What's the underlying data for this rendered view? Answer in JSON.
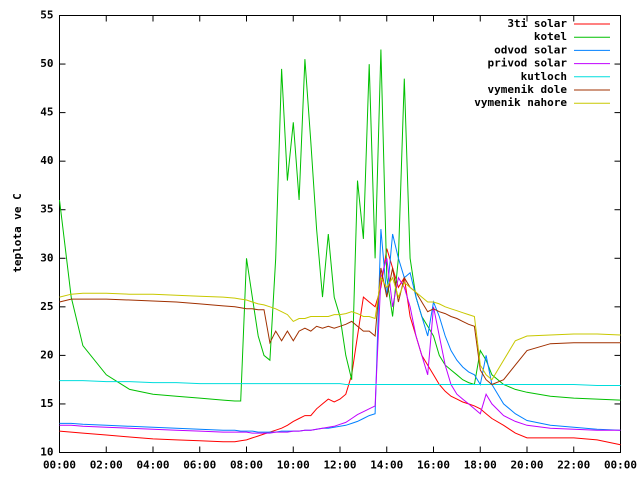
{
  "chart_data": {
    "type": "line",
    "ylabel": "teplota ve C",
    "x": [
      0,
      0.5,
      1,
      2,
      3,
      4,
      5,
      6,
      7,
      7.5,
      7.75,
      8,
      8.25,
      8.5,
      8.75,
      9,
      9.25,
      9.5,
      9.75,
      10,
      10.25,
      10.5,
      10.75,
      11,
      11.25,
      11.5,
      11.75,
      12,
      12.25,
      12.5,
      12.75,
      13,
      13.25,
      13.5,
      13.75,
      14,
      14.25,
      14.5,
      14.75,
      15,
      15.25,
      15.5,
      15.75,
      16,
      16.25,
      16.5,
      16.75,
      17,
      17.25,
      17.5,
      17.75,
      18,
      18.25,
      18.5,
      19,
      19.5,
      20,
      21,
      22,
      23,
      24
    ],
    "xlim": [
      0,
      24
    ],
    "xticks": [
      {
        "value": 0,
        "label": "00:00"
      },
      {
        "value": 2,
        "label": "02:00"
      },
      {
        "value": 4,
        "label": "04:00"
      },
      {
        "value": 6,
        "label": "06:00"
      },
      {
        "value": 8,
        "label": "08:00"
      },
      {
        "value": 10,
        "label": "10:00"
      },
      {
        "value": 12,
        "label": "12:00"
      },
      {
        "value": 14,
        "label": "14:00"
      },
      {
        "value": 16,
        "label": "16:00"
      },
      {
        "value": 18,
        "label": "18:00"
      },
      {
        "value": 20,
        "label": "20:00"
      },
      {
        "value": 22,
        "label": "22:00"
      },
      {
        "value": 24,
        "label": "00:00"
      }
    ],
    "ylim": [
      10,
      55
    ],
    "yticks": [
      10,
      15,
      20,
      25,
      30,
      35,
      40,
      45,
      50,
      55
    ],
    "legend": "top-right",
    "series": [
      {
        "name": "3ti solar",
        "color": "#ff0000",
        "values": [
          12.2,
          12.1,
          12,
          11.8,
          11.6,
          11.4,
          11.3,
          11.2,
          11.1,
          11.1,
          11.2,
          11.3,
          11.5,
          11.7,
          11.9,
          12.1,
          12.3,
          12.5,
          12.8,
          13.2,
          13.5,
          13.8,
          13.8,
          14.5,
          15,
          15.5,
          15.2,
          15.5,
          16,
          18,
          22,
          26,
          25.5,
          25,
          27,
          31,
          29,
          27,
          28,
          24,
          22,
          20,
          19,
          18,
          17,
          16.3,
          15.8,
          15.5,
          15.2,
          15,
          14.8,
          14.5,
          14,
          13.5,
          12.8,
          12,
          11.5,
          11.5,
          11.5,
          11.3,
          10.8
        ]
      },
      {
        "name": "kotel",
        "color": "#00c000",
        "values": [
          36,
          26,
          21,
          18,
          16.5,
          16,
          15.8,
          15.6,
          15.4,
          15.3,
          15.3,
          30,
          26,
          22,
          20,
          19.5,
          30,
          49.5,
          38,
          44,
          36,
          50.5,
          42,
          33,
          26,
          32.5,
          26,
          24,
          20,
          17.5,
          38,
          32,
          50,
          30,
          51.5,
          28,
          24,
          30,
          48.5,
          30,
          26,
          24,
          23,
          22,
          20,
          19,
          18.5,
          18,
          17.5,
          17.2,
          17,
          20.5,
          19.5,
          18,
          17,
          16.5,
          16.2,
          15.8,
          15.6,
          15.5,
          15.4
        ]
      },
      {
        "name": "odvod solar",
        "color": "#0080ff",
        "values": [
          13,
          13,
          12.9,
          12.8,
          12.7,
          12.6,
          12.5,
          12.4,
          12.3,
          12.3,
          12.2,
          12.2,
          12.2,
          12.1,
          12.1,
          12.1,
          12.1,
          12.2,
          12.2,
          12.2,
          12.2,
          12.3,
          12.3,
          12.4,
          12.5,
          12.5,
          12.6,
          12.7,
          12.8,
          13,
          13.2,
          13.5,
          13.8,
          14,
          33,
          26,
          32.5,
          30,
          28,
          28.5,
          26,
          24,
          22,
          25.5,
          24,
          22,
          20.5,
          19.5,
          18.8,
          18.3,
          18,
          17,
          20,
          17,
          15,
          14,
          13.3,
          12.8,
          12.6,
          12.4,
          12.3
        ]
      },
      {
        "name": "privod solar",
        "color": "#c000ff",
        "values": [
          12.8,
          12.8,
          12.7,
          12.6,
          12.5,
          12.4,
          12.3,
          12.2,
          12.1,
          12.1,
          12.1,
          12.1,
          12,
          12,
          12,
          12,
          12.1,
          12.1,
          12.1,
          12.2,
          12.2,
          12.3,
          12.3,
          12.4,
          12.5,
          12.6,
          12.7,
          12.9,
          13.1,
          13.5,
          13.9,
          14.2,
          14.5,
          14.8,
          28,
          30,
          25,
          28,
          27,
          25,
          22,
          20,
          18,
          25,
          22,
          19,
          17,
          16,
          15.5,
          15,
          14.5,
          14,
          16,
          15,
          13.8,
          13.2,
          12.8,
          12.5,
          12.4,
          12.3,
          12.3
        ]
      },
      {
        "name": "kutloch",
        "color": "#00dddd",
        "values": [
          17.4,
          17.4,
          17.4,
          17.3,
          17.3,
          17.2,
          17.2,
          17.1,
          17.1,
          17.1,
          17.1,
          17.1,
          17.1,
          17.1,
          17.1,
          17.1,
          17.1,
          17.1,
          17.1,
          17.1,
          17.1,
          17.1,
          17.1,
          17.1,
          17.1,
          17.1,
          17.1,
          17.1,
          17,
          17,
          17,
          17,
          17,
          17,
          17,
          17,
          17,
          17,
          17,
          17,
          17,
          17,
          17,
          17,
          17,
          17,
          17,
          17,
          17,
          17,
          17,
          17,
          17,
          17,
          17,
          17,
          17,
          17,
          17,
          16.9,
          16.9
        ]
      },
      {
        "name": "vymenik dole",
        "color": "#a03000",
        "values": [
          25.5,
          25.8,
          25.8,
          25.8,
          25.7,
          25.6,
          25.5,
          25.3,
          25.1,
          25,
          24.9,
          24.8,
          24.8,
          24.7,
          24.7,
          21.3,
          22.5,
          21.5,
          22.5,
          21.5,
          22.5,
          22.8,
          22.5,
          23,
          22.8,
          23,
          22.8,
          23,
          23.2,
          23.5,
          23,
          22.5,
          22.5,
          22,
          29,
          26,
          29,
          25.5,
          28,
          27,
          26.5,
          25.5,
          24.5,
          24.8,
          24.5,
          24.3,
          24,
          23.8,
          23.5,
          23.2,
          23,
          18.5,
          17.5,
          17,
          17.5,
          19,
          20.5,
          21.2,
          21.3,
          21.3,
          21.3
        ]
      },
      {
        "name": "vymenik nahore",
        "color": "#c8c800",
        "values": [
          26,
          26.3,
          26.4,
          26.4,
          26.3,
          26.3,
          26.2,
          26.1,
          26,
          25.9,
          25.8,
          25.7,
          25.5,
          25.3,
          25.2,
          25,
          24.8,
          24.5,
          24.2,
          23.5,
          23.8,
          23.8,
          24,
          24,
          24,
          24,
          24.2,
          24.2,
          24.3,
          24.5,
          24.3,
          24,
          24,
          23.8,
          28,
          27,
          28,
          26,
          27.5,
          27,
          26.5,
          26,
          25.5,
          25.5,
          25.3,
          25,
          24.8,
          24.6,
          24.4,
          24.2,
          24,
          19,
          18,
          17.5,
          19.5,
          21.5,
          22,
          22.1,
          22.2,
          22.2,
          22.1
        ]
      }
    ]
  }
}
